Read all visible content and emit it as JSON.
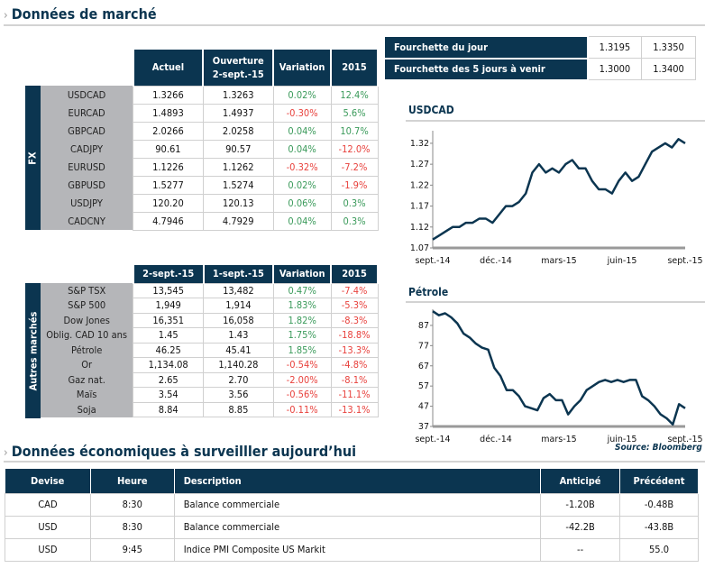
{
  "title": "Données de marché",
  "fx": {
    "side_label": "FX",
    "headers": [
      "Actuel",
      "Ouverture\n2-sept.-15",
      "Variation",
      "2015"
    ],
    "rows": [
      [
        "USDCAD",
        "1.3266",
        "1.3263",
        "0.02%",
        "12.4%"
      ],
      [
        "EURCAD",
        "1.4893",
        "1.4937",
        "-0.30%",
        "5.6%"
      ],
      [
        "GBPCAD",
        "2.0266",
        "2.0258",
        "0.04%",
        "10.7%"
      ],
      [
        "CADJPY",
        "90.61",
        "90.57",
        "0.04%",
        "-12.0%"
      ],
      [
        "EURUSD",
        "1.1226",
        "1.1262",
        "-0.32%",
        "-7.2%"
      ],
      [
        "GBPUSD",
        "1.5277",
        "1.5274",
        "0.02%",
        "-1.9%"
      ],
      [
        "USDJPY",
        "120.20",
        "120.13",
        "0.06%",
        "0.3%"
      ],
      [
        "CADCNY",
        "4.7946",
        "4.7929",
        "0.04%",
        "0.3%"
      ]
    ]
  },
  "other": {
    "side_label": "Autres marchés",
    "headers": [
      "2-sept.-15",
      "1-sept.-15",
      "Variation",
      "2015"
    ],
    "rows": [
      [
        "S&P TSX",
        "13,545",
        "13,482",
        "0.47%",
        "-7.4%"
      ],
      [
        "S&P 500",
        "1,949",
        "1,914",
        "1.83%",
        "-5.3%"
      ],
      [
        "Dow Jones",
        "16,351",
        "16,058",
        "1.82%",
        "-8.3%"
      ],
      [
        "Oblig. CAD 10 ans",
        "1.45",
        "1.43",
        "1.75%",
        "-18.8%"
      ],
      [
        "Pétrole",
        "46.25",
        "45.41",
        "1.85%",
        "-13.3%"
      ],
      [
        "Or",
        "1,134.08",
        "1,140.28",
        "-0.54%",
        "-4.8%"
      ],
      [
        "Gaz nat.",
        "2.65",
        "2.70",
        "-2.00%",
        "-8.1%"
      ],
      [
        "Maïs",
        "3.54",
        "3.56",
        "-0.56%",
        "-11.1%"
      ],
      [
        "Soja",
        "8.84",
        "8.85",
        "-0.11%",
        "-13.1%"
      ]
    ]
  },
  "range": {
    "rows": [
      [
        "Fourchette du jour",
        "1.3195",
        "1.3350"
      ],
      [
        "Fourchette des 5 jours à venir",
        "1.3000",
        "1.3400"
      ]
    ]
  },
  "colors": {
    "navy": "#0b3550",
    "positive": "#3a9a5a",
    "negative": "#e8413c",
    "label_bg": "#b5b6b9"
  },
  "chart_data": [
    {
      "type": "line",
      "title": "USDCAD",
      "ylim": [
        1.07,
        1.35
      ],
      "yticks": [
        "1.07",
        "1.12",
        "1.17",
        "1.22",
        "1.27",
        "1.32"
      ],
      "xticks": [
        "sept.-14",
        "déc.-14",
        "mars-15",
        "juin-15",
        "sept.-15"
      ],
      "values": [
        1.09,
        1.1,
        1.11,
        1.12,
        1.12,
        1.13,
        1.13,
        1.14,
        1.14,
        1.13,
        1.15,
        1.17,
        1.17,
        1.18,
        1.2,
        1.25,
        1.27,
        1.25,
        1.26,
        1.25,
        1.27,
        1.28,
        1.26,
        1.26,
        1.23,
        1.21,
        1.21,
        1.2,
        1.23,
        1.25,
        1.23,
        1.24,
        1.27,
        1.3,
        1.31,
        1.32,
        1.31,
        1.33,
        1.32
      ]
    },
    {
      "type": "line",
      "title": "Pétrole",
      "ylim": [
        37,
        95
      ],
      "yticks": [
        "37",
        "47",
        "57",
        "67",
        "77",
        "87"
      ],
      "xticks": [
        "sept.-14",
        "déc.-14",
        "mars-15",
        "juin-15",
        "sept.-15"
      ],
      "values": [
        94,
        92,
        93,
        91,
        88,
        83,
        81,
        78,
        76,
        75,
        66,
        62,
        55,
        55,
        52,
        47,
        46,
        45,
        51,
        53,
        50,
        50,
        43,
        47,
        50,
        55,
        57,
        59,
        60,
        59,
        60,
        59,
        60,
        60,
        52,
        50,
        47,
        43,
        41,
        38,
        48,
        46
      ],
      "source": "Source: Bloomberg"
    }
  ],
  "econ": {
    "title": "Données économiques à surveilller aujourd’hui",
    "headers": [
      "Devise",
      "Heure",
      "Description",
      "Anticipé",
      "Précédent"
    ],
    "rows": [
      [
        "CAD",
        "8:30",
        "Balance commerciale",
        "-1.20B",
        "-0.48B"
      ],
      [
        "USD",
        "8:30",
        "Balance commerciale",
        "-42.2B",
        "-43.8B"
      ],
      [
        "USD",
        "9:45",
        "Indice PMI Composite US Markit",
        "--",
        "55.0"
      ]
    ]
  }
}
